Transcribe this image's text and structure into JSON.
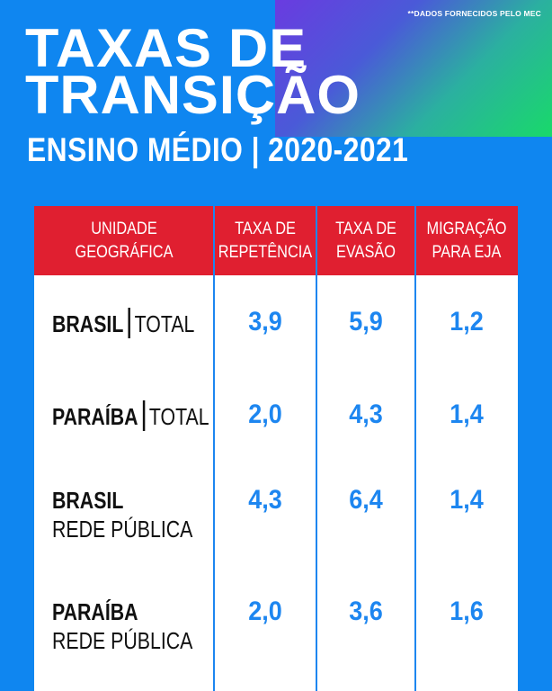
{
  "source_note": "**DADOS FORNECIDOS PELO MEC",
  "title_line1": "TAXAS DE",
  "title_line2": "TRANSIÇÃO",
  "subtitle": "ENSINO MÉDIO | 2020-2021",
  "colors": {
    "background": "#0f86f0",
    "header_red": "#e01f30",
    "value_blue": "#1d86f0"
  },
  "table": {
    "headers": [
      {
        "line1": "UNIDADE",
        "line2": "GEOGRÁFICA"
      },
      {
        "line1": "TAXA DE",
        "line2": "REPETÊNCIA"
      },
      {
        "line1": "TAXA DE",
        "line2": "EVASÃO"
      },
      {
        "line1": "MIGRAÇÃO",
        "line2": "PARA EJA"
      }
    ],
    "rows": [
      {
        "region": "BRASIL",
        "scope": "TOTAL",
        "repetencia": "3,9",
        "evasao": "5,9",
        "eja": "1,2"
      },
      {
        "region": "PARAÍBA",
        "scope": "TOTAL",
        "repetencia": "2,0",
        "evasao": "4,3",
        "eja": "1,4"
      },
      {
        "region": "BRASIL",
        "scope": "REDE PÚBLICA",
        "repetencia": "4,3",
        "evasao": "6,4",
        "eja": "1,4"
      },
      {
        "region": "PARAÍBA",
        "scope": "REDE PÚBLICA",
        "repetencia": "2,0",
        "evasao": "3,6",
        "eja": "1,6"
      }
    ]
  }
}
